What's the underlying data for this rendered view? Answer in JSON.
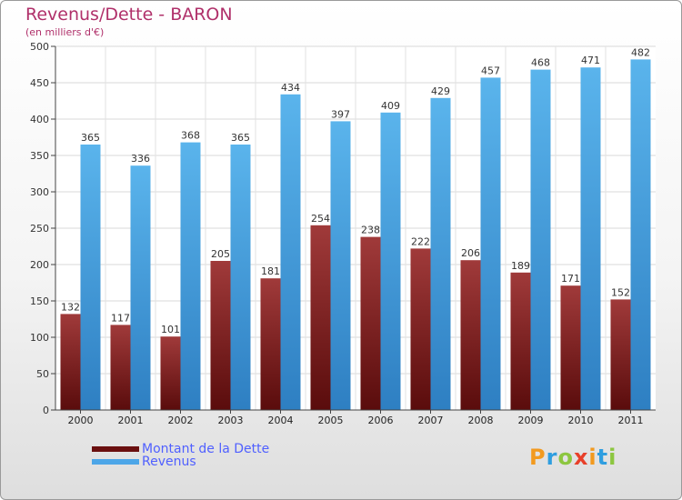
{
  "header": {
    "title": "Revenus/Dette - BARON",
    "subtitle": "(en milliers d'€)"
  },
  "legend": {
    "debt_label": "Montant de la Dette",
    "revenue_label": "Revenus"
  },
  "logo": {
    "text": "Proxiti",
    "letters": [
      {
        "ch": "P",
        "color": "#f29a1f"
      },
      {
        "ch": "r",
        "color": "#2f9ee0"
      },
      {
        "ch": "o",
        "color": "#8cc63f"
      },
      {
        "ch": "x",
        "color": "#e8402a"
      },
      {
        "ch": "i",
        "color": "#f29a1f"
      },
      {
        "ch": "t",
        "color": "#2f9ee0"
      },
      {
        "ch": "i",
        "color": "#8cc63f"
      }
    ]
  },
  "colors": {
    "debt_top": "#a03a3a",
    "debt_bottom": "#5a0c0c",
    "revenue_top": "#5ab4ec",
    "revenue_bottom": "#2e7fc2",
    "legend_debt": "#6a0f0f",
    "legend_revenue": "#4da6e8"
  },
  "chart_data": {
    "type": "bar",
    "categories": [
      "2000",
      "2001",
      "2002",
      "2003",
      "2004",
      "2005",
      "2006",
      "2007",
      "2008",
      "2009",
      "2010",
      "2011"
    ],
    "series": [
      {
        "name": "Montant de la Dette",
        "values": [
          132,
          117,
          101,
          205,
          181,
          254,
          238,
          222,
          206,
          189,
          171,
          152
        ]
      },
      {
        "name": "Revenus",
        "values": [
          365,
          336,
          368,
          365,
          434,
          397,
          409,
          429,
          457,
          468,
          471,
          482
        ]
      }
    ],
    "ylim": [
      0,
      500
    ],
    "yticks": [
      0,
      50,
      100,
      150,
      200,
      250,
      300,
      350,
      400,
      450,
      500
    ],
    "grid": true,
    "data_labels": true,
    "legend_position": "bottom-left"
  }
}
